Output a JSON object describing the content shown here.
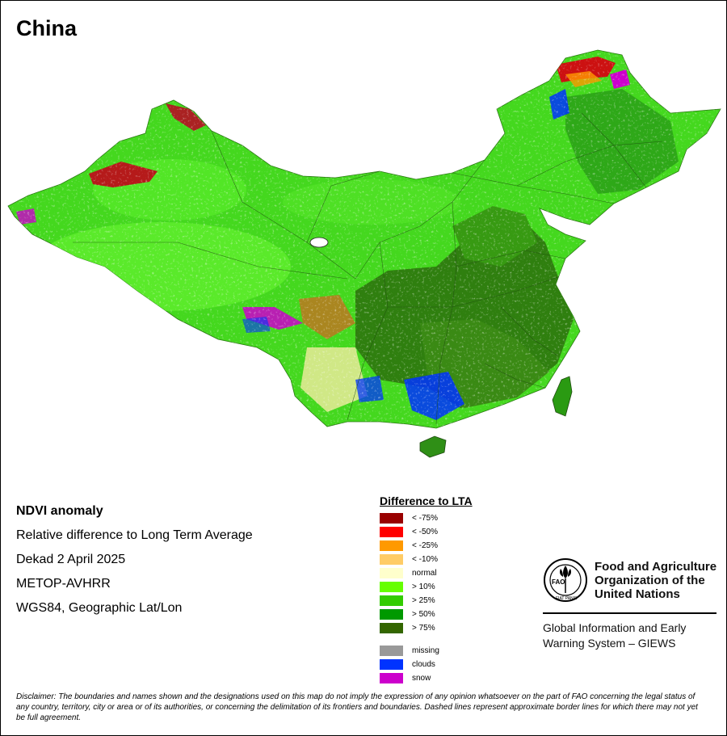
{
  "title": "China",
  "info": {
    "heading": "NDVI anomaly",
    "lines": [
      "Relative difference to Long Term Average",
      "Dekad 2 April 2025",
      "METOP-AVHRR",
      "WGS84, Geographic Lat/Lon"
    ]
  },
  "legend": {
    "title": "Difference to LTA",
    "items": [
      {
        "label": "< -75%",
        "color": "#990000"
      },
      {
        "label": "< -50%",
        "color": "#ff0000"
      },
      {
        "label": "< -25%",
        "color": "#ff9900"
      },
      {
        "label": "< -10%",
        "color": "#ffcc66"
      },
      {
        "label": "normal",
        "color": "#ffffcc"
      },
      {
        "label": "> 10%",
        "color": "#66ff00"
      },
      {
        "label": "> 25%",
        "color": "#33cc00"
      },
      {
        "label": "> 50%",
        "color": "#009900"
      },
      {
        "label": "> 75%",
        "color": "#336600"
      }
    ],
    "extra": [
      {
        "label": "missing",
        "color": "#999999"
      },
      {
        "label": "clouds",
        "color": "#0033ff"
      },
      {
        "label": "snow",
        "color": "#cc00cc"
      }
    ]
  },
  "fao": {
    "logo_text": "FAO",
    "logo_motto": "FIAT PANIS",
    "name_lines": [
      "Food and Agriculture",
      "Organization of the",
      "United Nations"
    ],
    "giews_lines": [
      "Global Information and Early",
      "Warning System – GIEWS"
    ]
  },
  "disclaimer": "Disclaimer: The boundaries and names shown and the designations used on this map do not imply the expression of any opinion whatsoever on the part of FAO concerning the legal status of any country, territory, city or area or of its authorities, or concerning the delimitation of its frontiers and boundaries. Dashed lines represent approximate border lines for which there may not yet be full agreement."
}
